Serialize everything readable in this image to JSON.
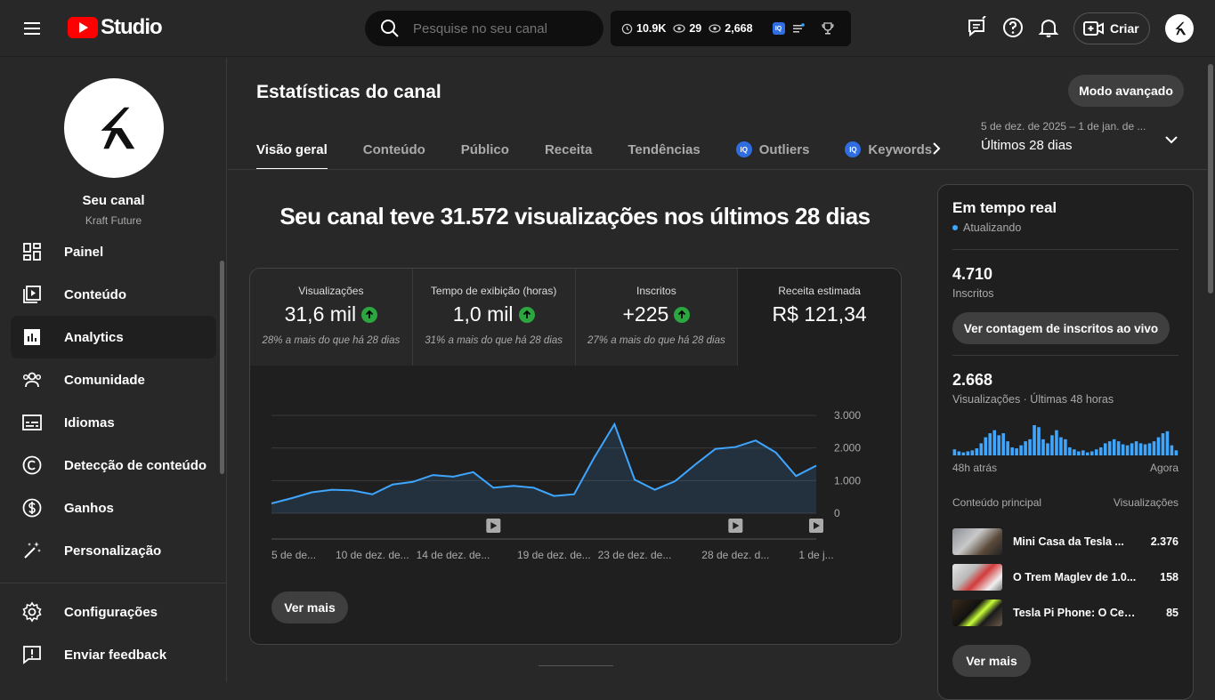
{
  "header": {
    "logo_text": "Studio",
    "search_placeholder": "Pesquise no seu canal",
    "stats": {
      "clock_value": "10.9K",
      "eye_value1": "29",
      "eye_value2": "2,668",
      "iq_label": "IQ"
    },
    "create_label": "Criar"
  },
  "sidebar": {
    "channel_name": "Seu canal",
    "channel_handle": "Kraft Future",
    "items": [
      {
        "label": "Painel",
        "icon": "dashboard-icon"
      },
      {
        "label": "Conteúdo",
        "icon": "content-icon"
      },
      {
        "label": "Analytics",
        "icon": "analytics-icon",
        "active": true
      },
      {
        "label": "Comunidade",
        "icon": "community-icon"
      },
      {
        "label": "Idiomas",
        "icon": "subtitles-icon"
      },
      {
        "label": "Detecção de conteúdo",
        "icon": "copyright-icon"
      },
      {
        "label": "Ganhos",
        "icon": "dollar-icon"
      },
      {
        "label": "Personalização",
        "icon": "magic-wand-icon"
      }
    ],
    "bottom_items": [
      {
        "label": "Configurações",
        "icon": "gear-icon"
      },
      {
        "label": "Enviar feedback",
        "icon": "feedback-icon"
      }
    ]
  },
  "main": {
    "title": "Estatísticas do canal",
    "advanced_label": "Modo avançado",
    "tabs": [
      {
        "label": "Visão geral",
        "active": true
      },
      {
        "label": "Conteúdo"
      },
      {
        "label": "Público"
      },
      {
        "label": "Receita"
      },
      {
        "label": "Tendências"
      },
      {
        "label": "Outliers",
        "iq": true
      },
      {
        "label": "Keywords",
        "iq": true
      }
    ],
    "date_range": {
      "sub": "5 de dez. de 2025 – 1 de jan. de ...",
      "main": "Últimos 28 dias"
    },
    "headline": "Seu canal teve 31.572 visualizações nos últimos 28 dias",
    "metrics": [
      {
        "label": "Visualizações",
        "value": "31,6 mil",
        "note": "28% a mais do que há 28 dias",
        "up": true
      },
      {
        "label": "Tempo de exibição (horas)",
        "value": "1,0 mil",
        "note": "31% a mais do que há 28 dias",
        "up": true
      },
      {
        "label": "Inscritos",
        "value": "+225",
        "note": "27% a mais do que há 28 dias",
        "up": true
      },
      {
        "label": "Receita estimada",
        "value": "R$ 121,34",
        "note": ""
      }
    ],
    "ver_mais": "Ver mais"
  },
  "chart_data": {
    "type": "area",
    "y_ticks": [
      "3.000",
      "2.000",
      "1.000",
      "0"
    ],
    "ylim": [
      0,
      3000
    ],
    "x_tick_labels": [
      "5 de de...",
      "10 de dez. de...",
      "14 de dez. de...",
      "19 de dez. de...",
      "23 de dez. de...",
      "28 de dez. d...",
      "1 de j..."
    ],
    "x_tick_indices": [
      0,
      5,
      9,
      14,
      18,
      23,
      27
    ],
    "values": [
      300,
      460,
      640,
      720,
      700,
      580,
      880,
      960,
      1170,
      1120,
      1260,
      780,
      840,
      780,
      530,
      580,
      1710,
      2730,
      1030,
      720,
      980,
      1490,
      1970,
      2030,
      2230,
      1860,
      1140,
      1460
    ],
    "video_markers": [
      11,
      23,
      27
    ],
    "series_color": "#3ea6ff"
  },
  "realtime": {
    "title": "Em tempo real",
    "status": "Atualizando",
    "subscribers_value": "4.710",
    "subscribers_label": "Inscritos",
    "live_count_btn": "Ver contagem de inscritos ao vivo",
    "views_value": "2.668",
    "views_label": "Visualizações · Últimas 48 horas",
    "bars": [
      6,
      4,
      3,
      4,
      5,
      7,
      12,
      18,
      22,
      25,
      20,
      22,
      14,
      8,
      7,
      10,
      14,
      16,
      30,
      28,
      16,
      12,
      20,
      25,
      18,
      16,
      8,
      6,
      4,
      5,
      3,
      4,
      6,
      8,
      12,
      14,
      16,
      14,
      11,
      10,
      12,
      14,
      12,
      11,
      12,
      14,
      18,
      22,
      24,
      10,
      5
    ],
    "left_label": "48h atrás",
    "right_label": "Agora",
    "content_header": "Conteúdo principal",
    "content_header_right": "Visualizações",
    "videos": [
      {
        "title": "Mini Casa da Tesla ...",
        "views": "2.376"
      },
      {
        "title": "O Trem Maglev de 1.0...",
        "views": "158"
      },
      {
        "title": "Tesla Pi Phone: O Celul...",
        "views": "85"
      }
    ],
    "ver_mais": "Ver mais"
  }
}
